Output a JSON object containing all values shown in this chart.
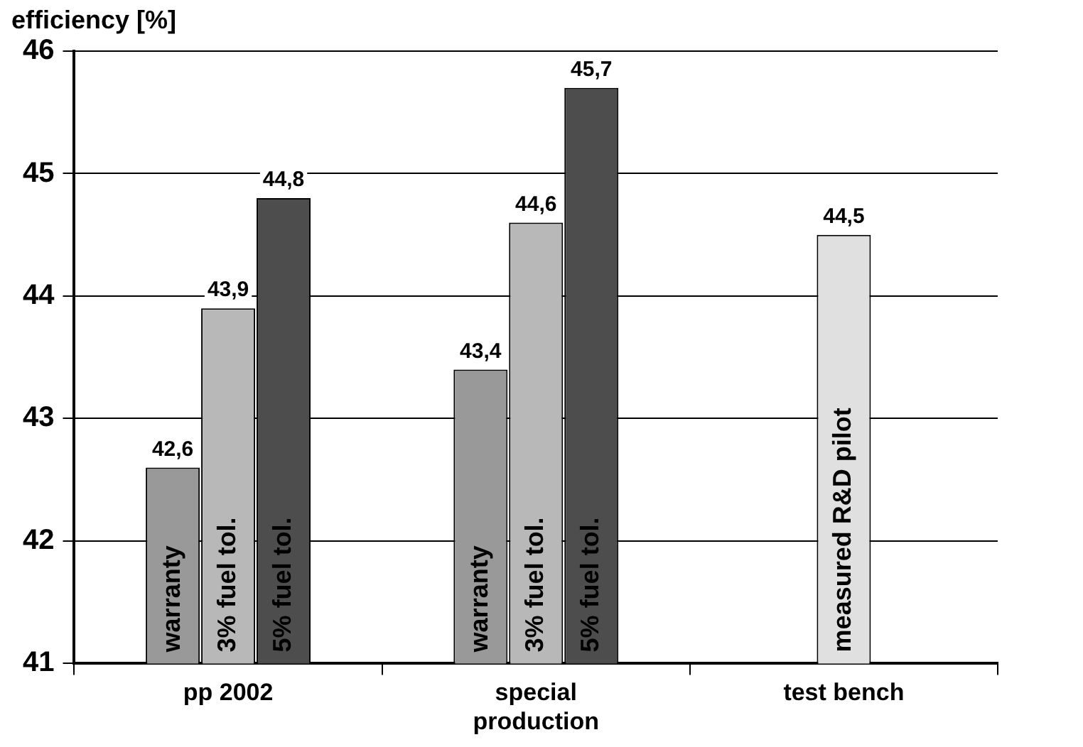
{
  "chart_data": {
    "type": "bar",
    "ylabel": "efficiency [%]",
    "categories": [
      "pp 2002",
      "special production",
      "test bench"
    ],
    "series": [
      {
        "name": "warranty",
        "color": "#999999",
        "values": [
          42.6,
          43.4,
          null
        ],
        "value_labels": [
          "42,6",
          "43,4",
          null
        ]
      },
      {
        "name": "3% fuel tol.",
        "color": "#b8b8b8",
        "values": [
          43.9,
          44.6,
          null
        ],
        "value_labels": [
          "43,9",
          "44,6",
          null
        ]
      },
      {
        "name": "5% fuel tol.",
        "color": "#4d4d4d",
        "values": [
          44.8,
          45.7,
          null
        ],
        "value_labels": [
          "44,8",
          "45,7",
          null
        ]
      },
      {
        "name": "measured R&D pilot",
        "color": "#e0e0e0",
        "values": [
          null,
          null,
          44.5
        ],
        "value_labels": [
          null,
          null,
          "44,5"
        ]
      }
    ],
    "ylim": [
      41,
      46
    ],
    "yticks": [
      41,
      42,
      43,
      44,
      45,
      46
    ],
    "grid": "y",
    "legend": false
  }
}
